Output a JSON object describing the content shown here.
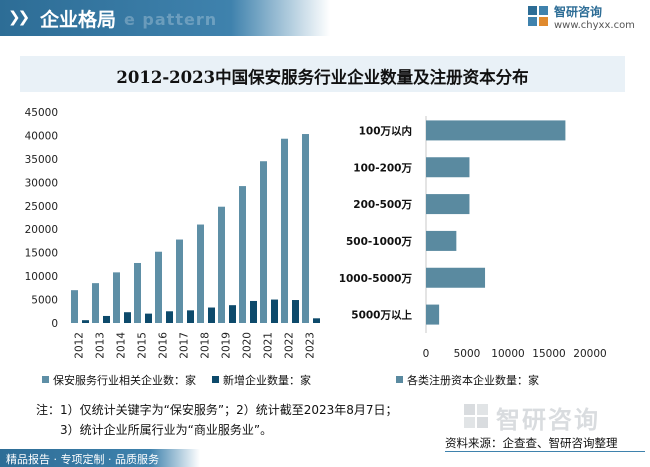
{
  "header": {
    "title": "企业格局",
    "watermark_text": "e pattern",
    "brand_name": "智研咨询",
    "brand_url": "www.chyxx.com"
  },
  "colors": {
    "header_blue": "#2d6d96",
    "series_light": "#5e8fa6",
    "series_dark": "#0d4a6b",
    "bar_right": "#5a8aa0",
    "title_bg": "#e9f1f7"
  },
  "chart_data": [
    {
      "type": "bar",
      "title": "2012-2023中国保安服务行业企业数量及注册资本分布",
      "categories": [
        "2012",
        "2013",
        "2014",
        "2015",
        "2016",
        "2017",
        "2018",
        "2019",
        "2020",
        "2021",
        "2022",
        "2023"
      ],
      "series": [
        {
          "name": "保安服务行业相关企业数：家",
          "values": [
            7000,
            8500,
            10800,
            12800,
            15200,
            17800,
            21000,
            24800,
            29200,
            34500,
            39300,
            40300
          ]
        },
        {
          "name": "新增企业数量：家",
          "values": [
            600,
            1500,
            2300,
            2000,
            2500,
            2700,
            3300,
            3800,
            4700,
            5000,
            4900,
            1000
          ]
        }
      ],
      "yticks": [
        "0",
        "5000",
        "10000",
        "15000",
        "20000",
        "25000",
        "30000",
        "35000",
        "40000",
        "45000"
      ],
      "ylim": [
        0,
        45000
      ]
    },
    {
      "type": "bar",
      "orientation": "horizontal",
      "categories": [
        "100万以内",
        "100-200万",
        "200-500万",
        "500-1000万",
        "1000-5000万",
        "5000万以上"
      ],
      "series": [
        {
          "name": "各类注册资本企业数量：家",
          "values": [
            17000,
            5300,
            5300,
            3700,
            7200,
            1600
          ]
        }
      ],
      "xticks": [
        "0",
        "5000",
        "10000",
        "15000",
        "20000"
      ],
      "xlim": [
        0,
        20000
      ]
    }
  ],
  "legend": [
    {
      "label": "保安服务行业相关企业数：家"
    },
    {
      "label": "新增企业数量：家"
    },
    {
      "label": "各类注册资本企业数量：家"
    }
  ],
  "notes": {
    "line1": "注：1）仅统计关键字为“保安服务”；2）统计截至2023年8月7日；",
    "line2": "3）统计企业所属行业为“商业服务业”。"
  },
  "watermark_bottom": "智研咨询",
  "source": "资料来源：企查查、智研咨询整理",
  "footer": "精品报告 · 专项定制 · 品质服务"
}
